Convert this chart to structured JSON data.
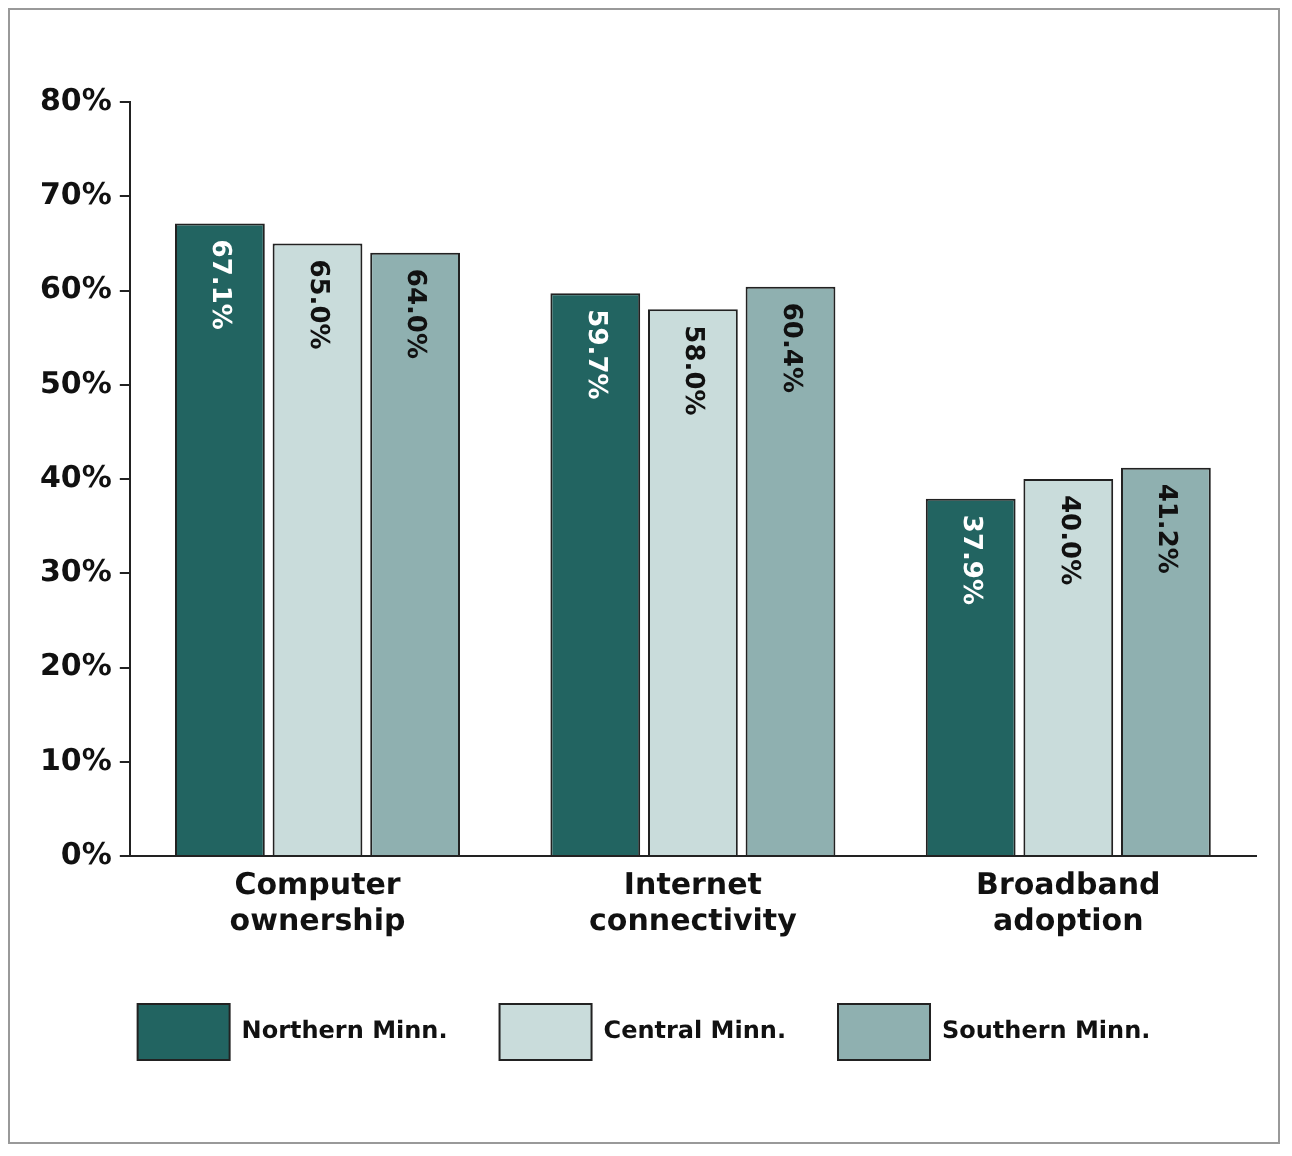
{
  "chart_data": {
    "type": "bar",
    "categories": [
      "Computer ownership",
      "Internet connectivity",
      "Broadband adoption"
    ],
    "series": [
      {
        "name": "Northern Minn.",
        "color": "#226461",
        "values": [
          67.1,
          59.7,
          37.9
        ],
        "value_labels": [
          "67.1%",
          "59.7%",
          "37.9%"
        ]
      },
      {
        "name": "Central Minn.",
        "color": "#c9dcdb",
        "values": [
          65.0,
          58.0,
          40.0
        ],
        "value_labels": [
          "65.0%",
          "58.0%",
          "40.0%"
        ]
      },
      {
        "name": "Southern Minn.",
        "color": "#8fb0b0",
        "values": [
          64.0,
          60.4,
          41.2
        ],
        "value_labels": [
          "64.0%",
          "60.4%",
          "41.2%"
        ]
      }
    ],
    "ylim": [
      0,
      80
    ],
    "yticks": [
      {
        "value": 0,
        "label": "0%"
      },
      {
        "value": 10,
        "label": "10%"
      },
      {
        "value": 20,
        "label": "20%"
      },
      {
        "value": 30,
        "label": "30%"
      },
      {
        "value": 40,
        "label": "40%"
      },
      {
        "value": 50,
        "label": "50%"
      },
      {
        "value": 60,
        "label": "60%"
      },
      {
        "value": 70,
        "label": "70%"
      },
      {
        "value": 80,
        "label": "80%"
      }
    ],
    "grid": false,
    "legend": "bottom"
  }
}
